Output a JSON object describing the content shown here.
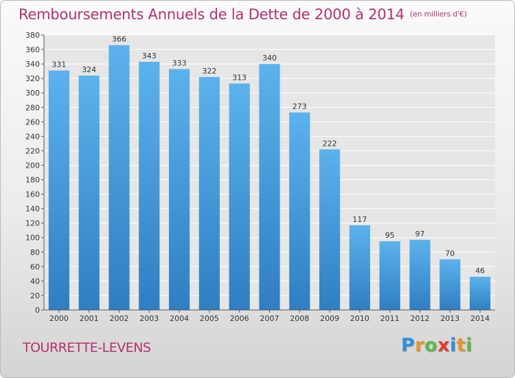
{
  "header": {
    "title": "Remboursements Annuels de la Dette de 2000 à 2014",
    "subtitle": "(en milliers d'€)"
  },
  "footer": {
    "location": "TOURRETTE-LEVENS",
    "logo_text": "Proxiti",
    "logo_letters": [
      {
        "char": "P",
        "color": "#2f8fd6"
      },
      {
        "char": "r",
        "color": "#e7932a"
      },
      {
        "char": "o",
        "color": "#5db847"
      },
      {
        "char": "x",
        "color": "#e23a2a"
      },
      {
        "char": "i",
        "color": "#2f8fd6"
      },
      {
        "char": "t",
        "color": "#e7932a"
      },
      {
        "char": "i",
        "color": "#5db847"
      }
    ]
  },
  "colors": {
    "title": "#b5306e",
    "location": "#b5306e",
    "bar_light": "#5cb2ec",
    "bar_dark": "#2f7ec2",
    "grid": "#ffffff",
    "axis_text": "#333333"
  },
  "chart_data": {
    "type": "bar",
    "title": "Remboursements Annuels de la Dette de 2000 à 2014",
    "subtitle": "(en milliers d'€)",
    "categories": [
      "2000",
      "2001",
      "2002",
      "2003",
      "2004",
      "2005",
      "2006",
      "2007",
      "2008",
      "2009",
      "2010",
      "2011",
      "2012",
      "2013",
      "2014"
    ],
    "values": [
      331,
      324,
      366,
      343,
      333,
      322,
      313,
      340,
      273,
      222,
      117,
      95,
      97,
      70,
      46
    ],
    "ylim": [
      0,
      380
    ],
    "ytick_step": 20,
    "grid": true,
    "data_labels": true,
    "legend": "none"
  }
}
